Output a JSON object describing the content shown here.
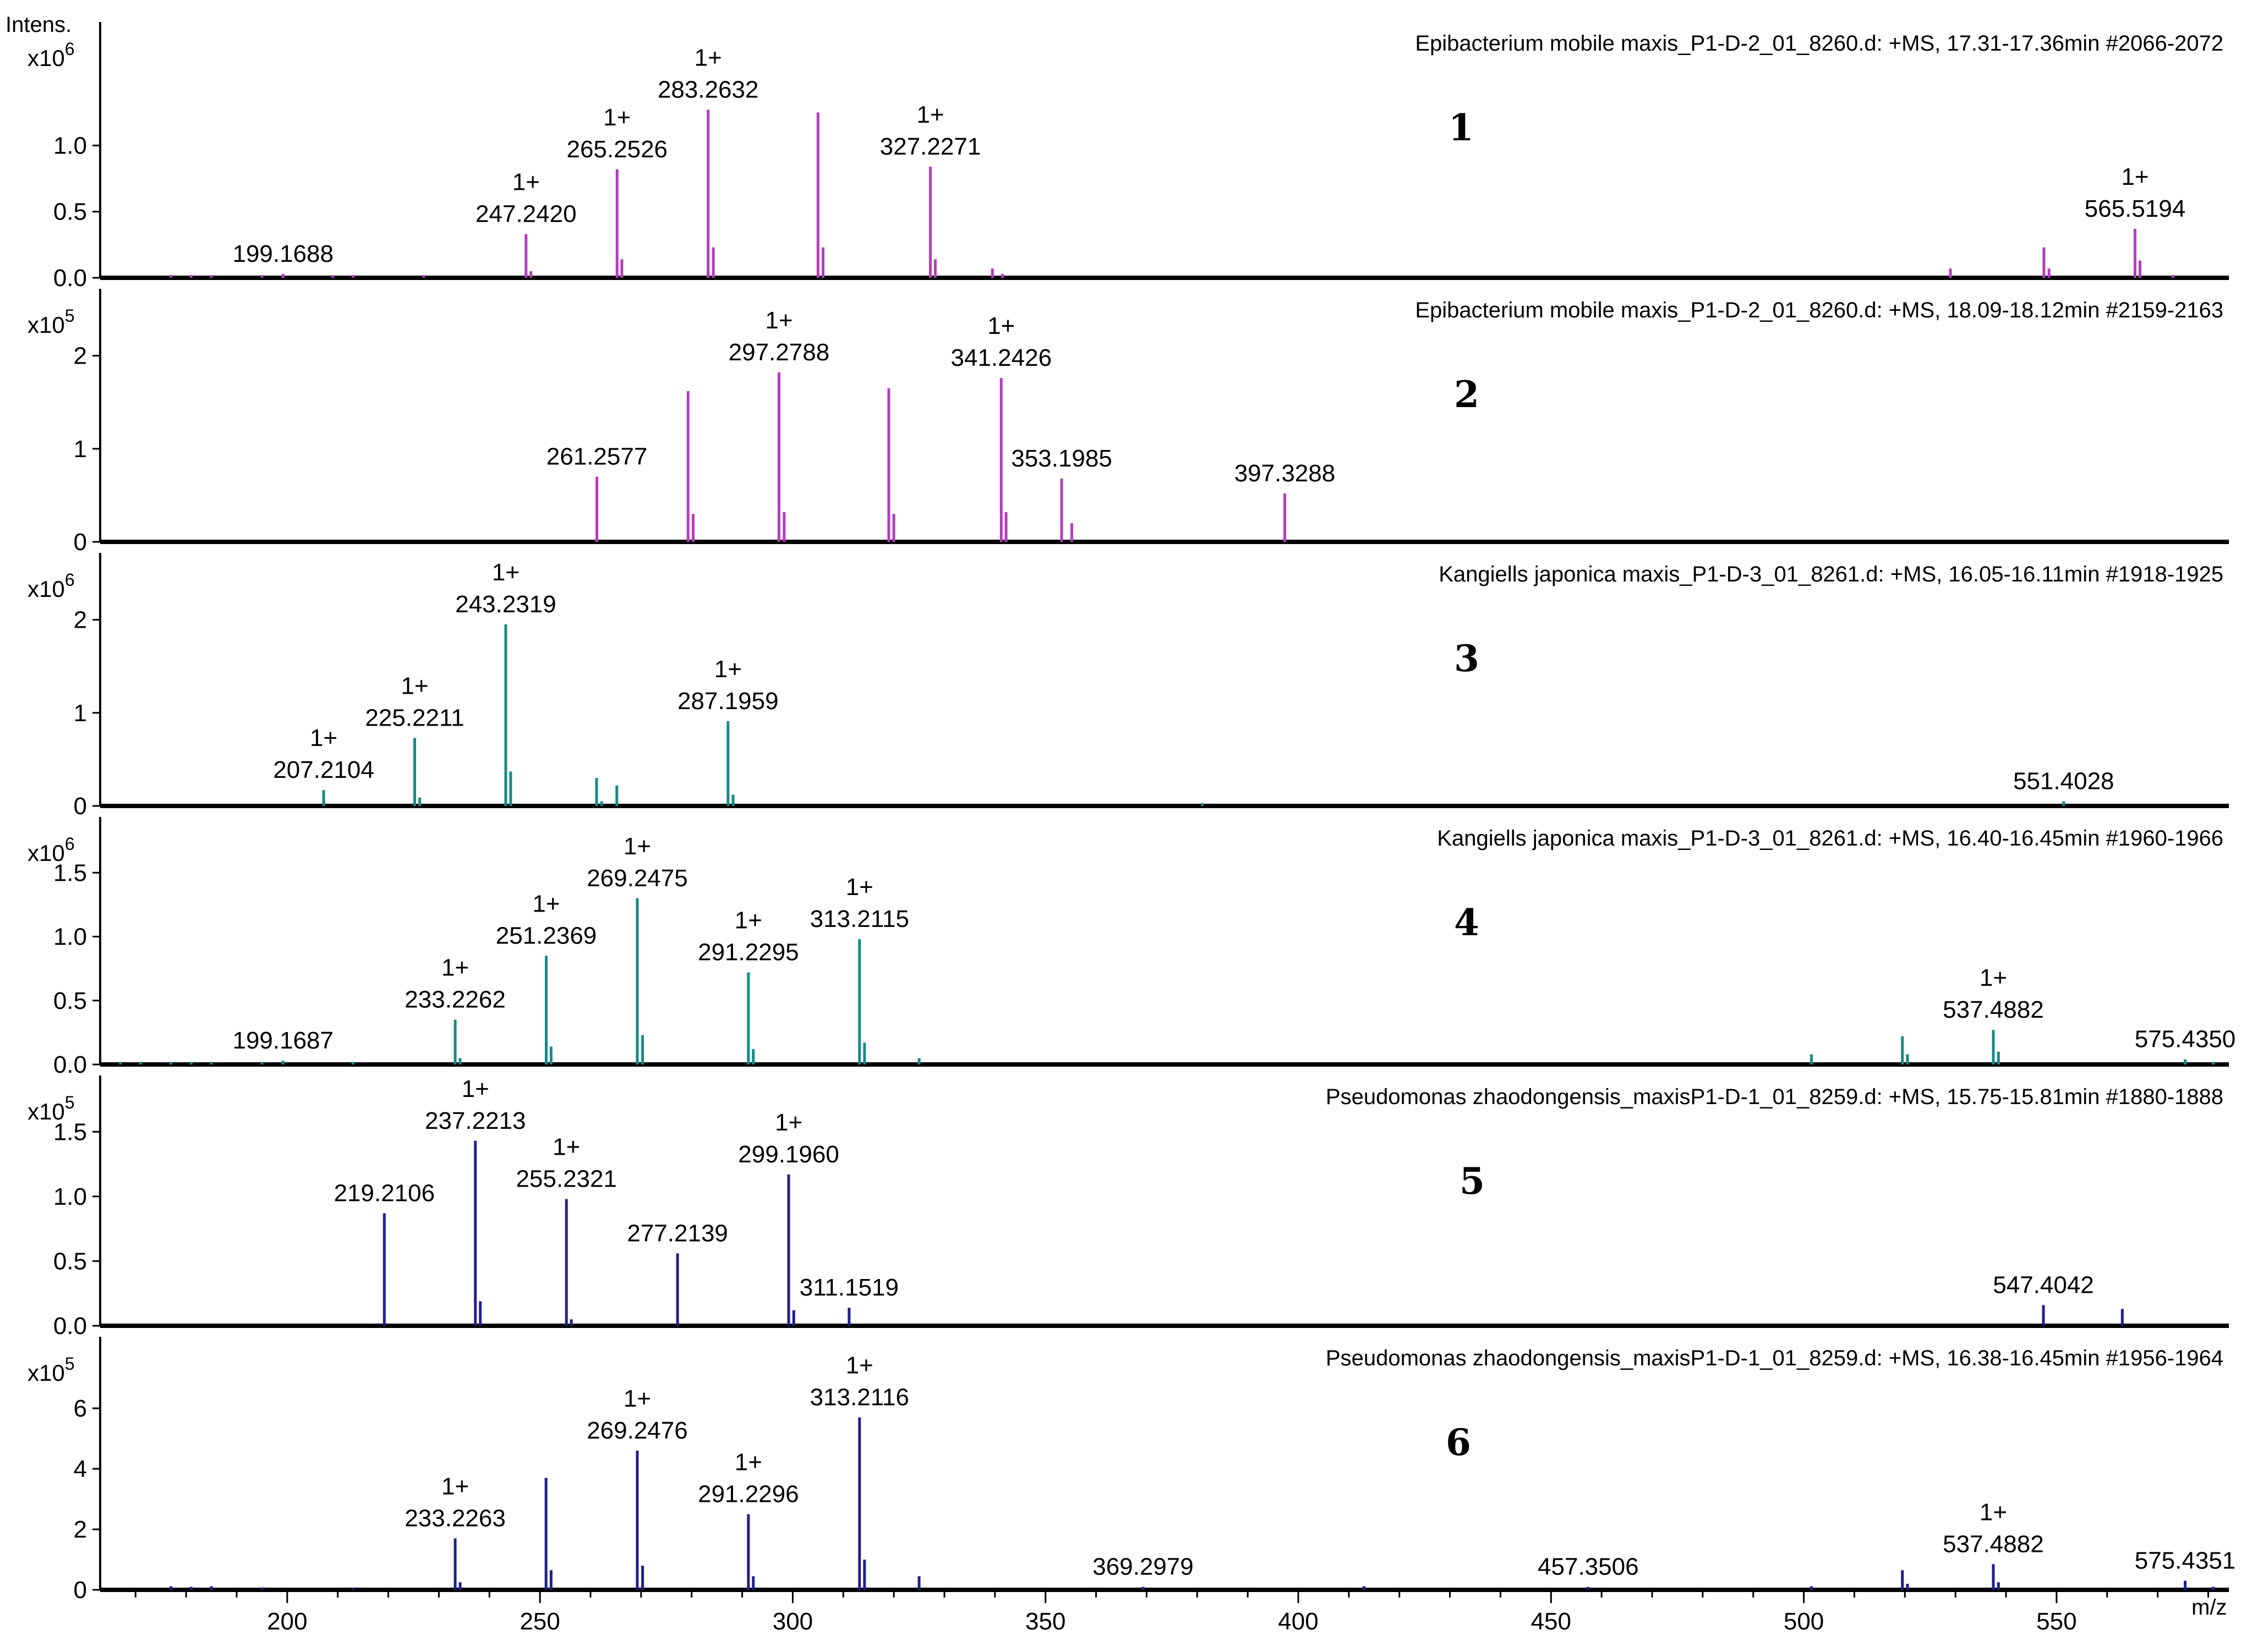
{
  "chart_data": {
    "type": "bar",
    "y_axis_label": "Intens.",
    "x_axis_label": "m/z",
    "x_range": [
      163,
      583
    ],
    "x_ticks": [
      200,
      250,
      300,
      350,
      400,
      450,
      500,
      550
    ],
    "panels": [
      {
        "number": "1",
        "title": "Epibacterium mobile maxis_P1-D-2_01_8260.d: +MS, 17.31-17.36min #2066-2072",
        "multiplier": "x10",
        "exponent": "6",
        "color": "#b43cbe",
        "ylim": [
          0,
          1.85
        ],
        "yticks": [
          0,
          0.5,
          1.0
        ],
        "ytick_labels": [
          "0.0",
          "0.5",
          "1.0"
        ],
        "peaks": [
          {
            "x": 177.0,
            "y": 0.02
          },
          {
            "x": 181.0,
            "y": 0.02
          },
          {
            "x": 185.0,
            "y": 0.02
          },
          {
            "x": 195.0,
            "y": 0.02
          },
          {
            "x": 199.1688,
            "y": 0.03,
            "label": "199.1688"
          },
          {
            "x": 209.0,
            "y": 0.02
          },
          {
            "x": 213.0,
            "y": 0.02
          },
          {
            "x": 227.0,
            "y": 0.02
          },
          {
            "x": 247.242,
            "y": 0.33,
            "label": "247.2420",
            "charge": "1+"
          },
          {
            "x": 248.2,
            "y": 0.05
          },
          {
            "x": 265.2526,
            "y": 0.82,
            "label": "265.2526",
            "charge": "1+"
          },
          {
            "x": 266.2,
            "y": 0.14
          },
          {
            "x": 283.2632,
            "y": 1.27,
            "label": "283.2632",
            "charge": "1+"
          },
          {
            "x": 284.3,
            "y": 0.23
          },
          {
            "x": 305.0,
            "y": 1.25
          },
          {
            "x": 306.0,
            "y": 0.23
          },
          {
            "x": 327.2271,
            "y": 0.84,
            "label": "327.2271",
            "charge": "1+"
          },
          {
            "x": 328.2,
            "y": 0.14
          },
          {
            "x": 339.5,
            "y": 0.07
          },
          {
            "x": 341.5,
            "y": 0.03
          },
          {
            "x": 529.0,
            "y": 0.07
          },
          {
            "x": 547.5,
            "y": 0.23
          },
          {
            "x": 548.5,
            "y": 0.07
          },
          {
            "x": 565.5194,
            "y": 0.37,
            "label": "565.5194",
            "charge": "1+"
          },
          {
            "x": 566.5,
            "y": 0.13
          },
          {
            "x": 573.0,
            "y": 0.02
          }
        ]
      },
      {
        "number": "2",
        "title": "Epibacterium mobile maxis_P1-D-2_01_8260.d: +MS, 18.09-18.12min #2159-2163",
        "multiplier": "x10",
        "exponent": "5",
        "color": "#b43cbe",
        "ylim": [
          0,
          2.6
        ],
        "yticks": [
          0,
          1,
          2
        ],
        "ytick_labels": [
          "0",
          "1",
          "2"
        ],
        "peaks": [
          {
            "x": 261.2577,
            "y": 0.7,
            "label": "261.2577"
          },
          {
            "x": 279.3,
            "y": 1.62
          },
          {
            "x": 280.3,
            "y": 0.3
          },
          {
            "x": 297.2788,
            "y": 1.82,
            "label": "297.2788",
            "charge": "1+"
          },
          {
            "x": 298.3,
            "y": 0.32
          },
          {
            "x": 319.0,
            "y": 1.65
          },
          {
            "x": 320.0,
            "y": 0.3
          },
          {
            "x": 341.2426,
            "y": 1.76,
            "label": "341.2426",
            "charge": "1+"
          },
          {
            "x": 342.2,
            "y": 0.32
          },
          {
            "x": 353.1985,
            "y": 0.68,
            "label": "353.1985"
          },
          {
            "x": 355.2,
            "y": 0.2
          },
          {
            "x": 397.3288,
            "y": 0.52,
            "label": "397.3288"
          }
        ]
      },
      {
        "number": "3",
        "title": "Kangiells japonica maxis_P1-D-3_01_8261.d: +MS, 16.05-16.11min #1918-1925",
        "multiplier": "x10",
        "exponent": "6",
        "color": "#168a86",
        "ylim": [
          0,
          2.6
        ],
        "yticks": [
          0,
          1,
          2
        ],
        "ytick_labels": [
          "0",
          "1",
          "2"
        ],
        "peaks": [
          {
            "x": 207.2104,
            "y": 0.17,
            "label": "207.2104",
            "charge": "1+"
          },
          {
            "x": 225.2211,
            "y": 0.73,
            "label": "225.2211",
            "charge": "1+"
          },
          {
            "x": 226.2,
            "y": 0.09
          },
          {
            "x": 243.2319,
            "y": 1.95,
            "label": "243.2319",
            "charge": "1+"
          },
          {
            "x": 244.2,
            "y": 0.37
          },
          {
            "x": 261.2,
            "y": 0.3
          },
          {
            "x": 262.2,
            "y": 0.05
          },
          {
            "x": 265.2,
            "y": 0.22
          },
          {
            "x": 287.1959,
            "y": 0.91,
            "label": "287.1959",
            "charge": "1+"
          },
          {
            "x": 288.2,
            "y": 0.12
          },
          {
            "x": 381.0,
            "y": 0.03
          },
          {
            "x": 551.4028,
            "y": 0.05,
            "label": "551.4028"
          }
        ]
      },
      {
        "number": "4",
        "title": "Kangiells japonica maxis_P1-D-3_01_8261.d: +MS, 16.40-16.45min #1960-1966",
        "multiplier": "x10",
        "exponent": "6",
        "color": "#168a86",
        "ylim": [
          0,
          1.85
        ],
        "yticks": [
          0,
          0.5,
          1.0,
          1.5
        ],
        "ytick_labels": [
          "0.0",
          "0.5",
          "1.0",
          "1.5"
        ],
        "peaks": [
          {
            "x": 167.0,
            "y": 0.02
          },
          {
            "x": 171.0,
            "y": 0.02
          },
          {
            "x": 177.0,
            "y": 0.02
          },
          {
            "x": 181.0,
            "y": 0.02
          },
          {
            "x": 185.0,
            "y": 0.02
          },
          {
            "x": 195.0,
            "y": 0.02
          },
          {
            "x": 199.1687,
            "y": 0.03,
            "label": "199.1687"
          },
          {
            "x": 213.0,
            "y": 0.02
          },
          {
            "x": 233.2262,
            "y": 0.35,
            "label": "233.2262",
            "charge": "1+"
          },
          {
            "x": 234.2,
            "y": 0.05
          },
          {
            "x": 251.2369,
            "y": 0.85,
            "label": "251.2369",
            "charge": "1+"
          },
          {
            "x": 252.2,
            "y": 0.14
          },
          {
            "x": 269.2475,
            "y": 1.3,
            "label": "269.2475",
            "charge": "1+"
          },
          {
            "x": 270.3,
            "y": 0.23
          },
          {
            "x": 291.2295,
            "y": 0.72,
            "label": "291.2295",
            "charge": "1+"
          },
          {
            "x": 292.2,
            "y": 0.12
          },
          {
            "x": 313.2115,
            "y": 0.98,
            "label": "313.2115",
            "charge": "1+"
          },
          {
            "x": 314.2,
            "y": 0.17
          },
          {
            "x": 325.0,
            "y": 0.05
          },
          {
            "x": 501.5,
            "y": 0.08
          },
          {
            "x": 519.5,
            "y": 0.22
          },
          {
            "x": 520.5,
            "y": 0.08
          },
          {
            "x": 537.4882,
            "y": 0.27,
            "label": "537.4882",
            "charge": "1+"
          },
          {
            "x": 538.5,
            "y": 0.1
          },
          {
            "x": 575.435,
            "y": 0.04,
            "label": "575.4350"
          },
          {
            "x": 581.0,
            "y": 0.02
          }
        ]
      },
      {
        "number": "5",
        "title": "Pseudomonas zhaodongensis_maxisP1-D-1_01_8259.d: +MS, 15.75-15.81min #1880-1888",
        "multiplier": "x10",
        "exponent": "5",
        "color": "#1f1f8c",
        "ylim": [
          0,
          1.85
        ],
        "yticks": [
          0,
          0.5,
          1.0,
          1.5
        ],
        "ytick_labels": [
          "0.0",
          "0.5",
          "1.0",
          "1.5"
        ],
        "peaks": [
          {
            "x": 219.2106,
            "y": 0.87,
            "label": "219.2106"
          },
          {
            "x": 237.2213,
            "y": 1.43,
            "label": "237.2213",
            "charge": "1+"
          },
          {
            "x": 238.2,
            "y": 0.19
          },
          {
            "x": 255.2321,
            "y": 0.98,
            "label": "255.2321",
            "charge": "1+"
          },
          {
            "x": 256.2,
            "y": 0.05
          },
          {
            "x": 277.2139,
            "y": 0.56,
            "label": "277.2139"
          },
          {
            "x": 299.196,
            "y": 1.17,
            "label": "299.1960",
            "charge": "1+"
          },
          {
            "x": 300.2,
            "y": 0.12
          },
          {
            "x": 311.1519,
            "y": 0.14,
            "label": "311.1519"
          },
          {
            "x": 547.4042,
            "y": 0.16,
            "label": "547.4042"
          },
          {
            "x": 563.0,
            "y": 0.13
          }
        ]
      },
      {
        "number": "6",
        "title": "Pseudomonas zhaodongensis_maxisP1-D-1_01_8259.d: +MS, 16.38-16.45min #1956-1964",
        "multiplier": "x10",
        "exponent": "5",
        "color": "#1f1f8c",
        "ylim": [
          0,
          8.0
        ],
        "yticks": [
          0,
          2,
          4,
          6
        ],
        "ytick_labels": [
          "0",
          "2",
          "4",
          "6"
        ],
        "peaks": [
          {
            "x": 177.0,
            "y": 0.12
          },
          {
            "x": 181.0,
            "y": 0.1
          },
          {
            "x": 185.0,
            "y": 0.12
          },
          {
            "x": 195.0,
            "y": 0.08
          },
          {
            "x": 213.0,
            "y": 0.06
          },
          {
            "x": 233.2263,
            "y": 1.7,
            "label": "233.2263",
            "charge": "1+"
          },
          {
            "x": 234.2,
            "y": 0.25
          },
          {
            "x": 251.2,
            "y": 3.7
          },
          {
            "x": 252.2,
            "y": 0.65
          },
          {
            "x": 269.2476,
            "y": 4.6,
            "label": "269.2476",
            "charge": "1+"
          },
          {
            "x": 270.3,
            "y": 0.8
          },
          {
            "x": 291.2296,
            "y": 2.5,
            "label": "291.2296",
            "charge": "1+"
          },
          {
            "x": 292.2,
            "y": 0.45
          },
          {
            "x": 313.2116,
            "y": 5.7,
            "label": "313.2116",
            "charge": "1+"
          },
          {
            "x": 314.2,
            "y": 1.0
          },
          {
            "x": 325.0,
            "y": 0.45
          },
          {
            "x": 369.2979,
            "y": 0.1,
            "label": "369.2979"
          },
          {
            "x": 413.0,
            "y": 0.12
          },
          {
            "x": 457.3506,
            "y": 0.1,
            "label": "457.3506"
          },
          {
            "x": 501.5,
            "y": 0.12
          },
          {
            "x": 519.5,
            "y": 0.65
          },
          {
            "x": 520.5,
            "y": 0.2
          },
          {
            "x": 537.4882,
            "y": 0.85,
            "label": "537.4882",
            "charge": "1+"
          },
          {
            "x": 538.5,
            "y": 0.25
          },
          {
            "x": 575.4351,
            "y": 0.3,
            "label": "575.4351"
          },
          {
            "x": 581.0,
            "y": 0.1
          }
        ]
      }
    ]
  }
}
